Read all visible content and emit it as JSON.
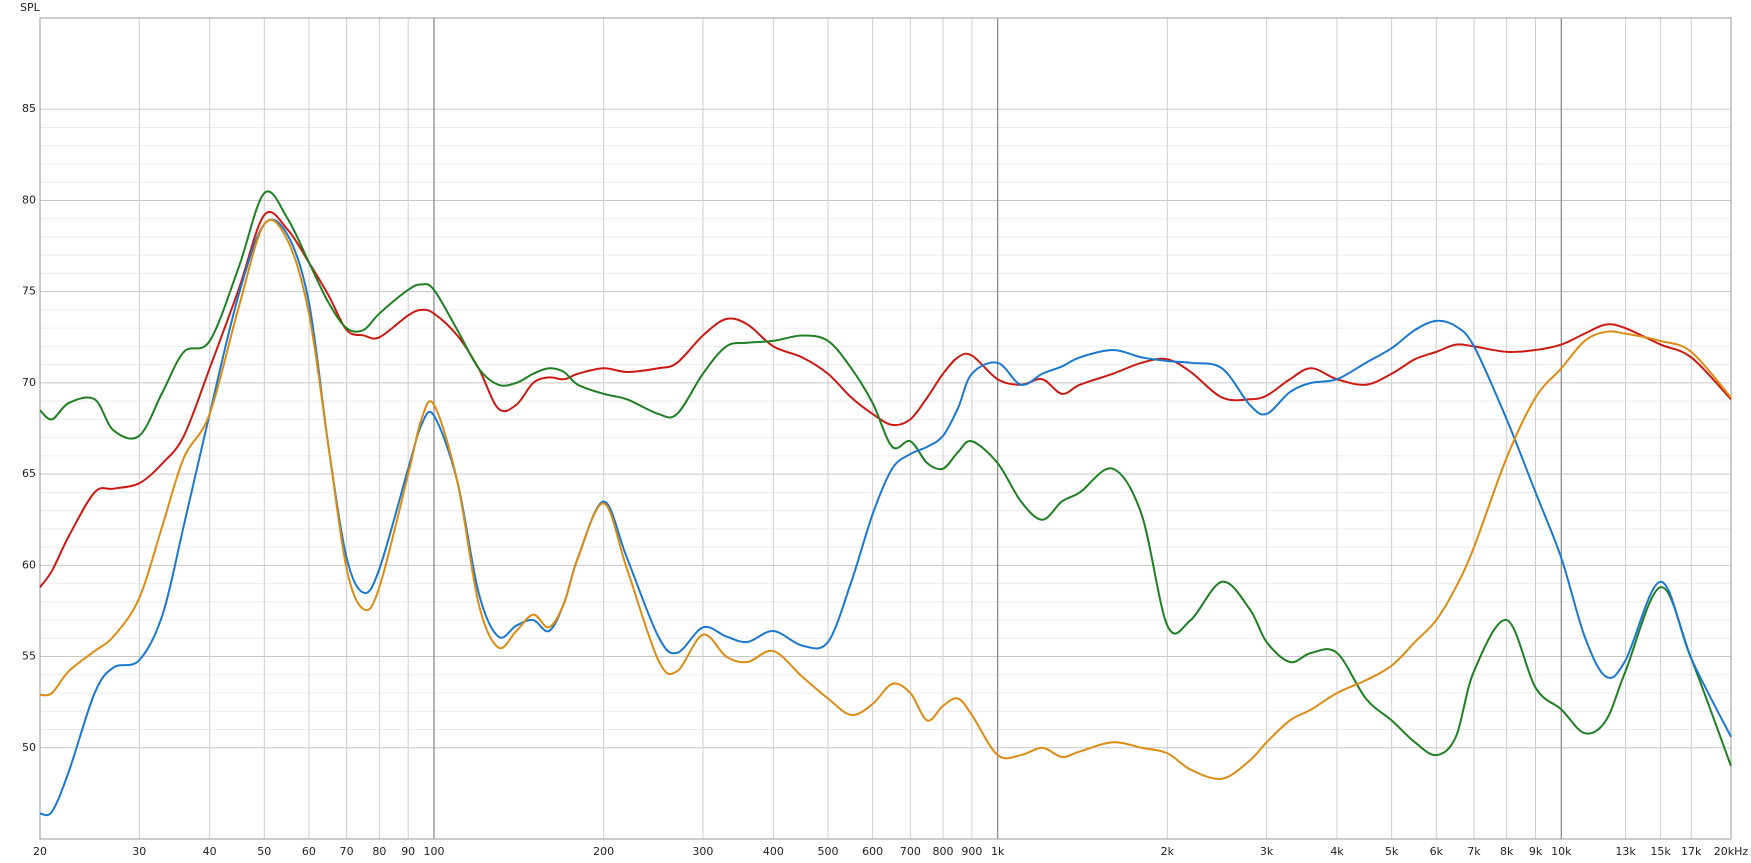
{
  "chart_data": {
    "type": "line",
    "y_label": "SPL",
    "x_scale": "log",
    "grid": true,
    "xlim": [
      20,
      20000
    ],
    "ylim": [
      45,
      90
    ],
    "yticks": [
      50,
      55,
      60,
      65,
      70,
      75,
      80,
      85
    ],
    "xticks": [
      20,
      30,
      40,
      50,
      60,
      70,
      80,
      90,
      100,
      200,
      300,
      400,
      500,
      600,
      700,
      800,
      900,
      {
        "value": 1000,
        "label": "1k"
      },
      {
        "value": 2000,
        "label": "2k"
      },
      {
        "value": 3000,
        "label": "3k"
      },
      {
        "value": 4000,
        "label": "4k"
      },
      {
        "value": 5000,
        "label": "5k"
      },
      {
        "value": 6000,
        "label": "6k"
      },
      {
        "value": 7000,
        "label": "7k"
      },
      {
        "value": 8000,
        "label": "8k"
      },
      {
        "value": 9000,
        "label": "9k"
      },
      {
        "value": 10000,
        "label": "10k"
      },
      {
        "value": 13000,
        "label": "13k"
      },
      {
        "value": 15000,
        "label": "15k"
      },
      {
        "value": 17000,
        "label": "17k"
      },
      {
        "value": 20000,
        "label": "20kHz"
      }
    ],
    "x": [
      20,
      21,
      22.5,
      25,
      27,
      30,
      33,
      36,
      40,
      45,
      50,
      55,
      60,
      65,
      70,
      75,
      80,
      90,
      95,
      100,
      110,
      120,
      130,
      140,
      150,
      160,
      170,
      180,
      200,
      220,
      250,
      270,
      300,
      330,
      360,
      400,
      450,
      500,
      550,
      600,
      650,
      700,
      750,
      800,
      850,
      900,
      1000,
      1100,
      1200,
      1300,
      1400,
      1600,
      1800,
      2000,
      2200,
      2500,
      2800,
      3000,
      3300,
      3600,
      4000,
      4500,
      5000,
      5500,
      6000,
      6500,
      7000,
      8000,
      9000,
      10000,
      11000,
      12000,
      13000,
      15000,
      17000,
      20000
    ],
    "series": [
      {
        "color": "#cc1a12",
        "values": [
          58.8,
          59.7,
          61.6,
          64.0,
          64.2,
          64.5,
          65.6,
          67.1,
          70.8,
          75.1,
          79.2,
          78.4,
          76.6,
          74.8,
          72.9,
          72.6,
          72.5,
          73.7,
          74.0,
          73.8,
          72.6,
          70.8,
          68.6,
          68.8,
          70.0,
          70.3,
          70.2,
          70.5,
          70.8,
          70.6,
          70.8,
          71.1,
          72.6,
          73.5,
          73.2,
          72.0,
          71.4,
          70.5,
          69.2,
          68.3,
          67.7,
          68.0,
          69.2,
          70.5,
          71.4,
          71.5,
          70.2,
          69.9,
          70.2,
          69.4,
          69.9,
          70.5,
          71.1,
          71.3,
          70.6,
          69.2,
          69.1,
          69.3,
          70.2,
          70.8,
          70.2,
          69.9,
          70.5,
          71.3,
          71.7,
          72.1,
          72.0,
          71.7,
          71.8,
          72.1,
          72.7,
          73.2,
          73.0,
          72.1,
          71.4,
          69.1
        ]
      },
      {
        "color": "#1f7f22",
        "values": [
          68.5,
          68.0,
          68.9,
          69.1,
          67.4,
          67.1,
          69.5,
          71.7,
          72.3,
          76.3,
          80.4,
          79.0,
          76.6,
          74.4,
          73.0,
          72.9,
          73.8,
          75.1,
          75.4,
          75.1,
          72.9,
          70.8,
          69.9,
          70.0,
          70.5,
          70.8,
          70.6,
          69.9,
          69.4,
          69.1,
          68.3,
          68.3,
          70.5,
          72.0,
          72.2,
          72.3,
          72.6,
          72.3,
          70.8,
          68.9,
          66.5,
          66.8,
          65.6,
          65.3,
          66.2,
          66.8,
          65.6,
          63.5,
          62.5,
          63.5,
          64.0,
          65.3,
          62.8,
          56.7,
          57.0,
          59.1,
          57.6,
          55.8,
          54.7,
          55.2,
          55.2,
          52.7,
          51.5,
          50.3,
          49.6,
          50.6,
          54.2,
          57.0,
          53.3,
          52.1,
          50.8,
          51.5,
          54.2,
          58.8,
          54.9,
          49.0
        ]
      },
      {
        "color": "#1a78d0",
        "values": [
          46.4,
          46.5,
          48.7,
          53.0,
          54.4,
          54.8,
          57.3,
          62.2,
          68.3,
          74.8,
          78.7,
          78.1,
          74.4,
          66.5,
          60.4,
          58.5,
          59.8,
          65.3,
          67.7,
          68.2,
          64.6,
          58.5,
          56.1,
          56.7,
          57.0,
          56.4,
          57.9,
          60.4,
          63.5,
          60.4,
          56.1,
          55.2,
          56.6,
          56.1,
          55.8,
          56.4,
          55.6,
          55.8,
          59.1,
          62.8,
          65.3,
          66.1,
          66.5,
          67.1,
          68.6,
          70.5,
          71.1,
          69.9,
          70.5,
          70.9,
          71.4,
          71.8,
          71.4,
          71.2,
          71.1,
          70.8,
          68.8,
          68.3,
          69.5,
          70.0,
          70.2,
          71.1,
          71.9,
          72.9,
          73.4,
          73.1,
          72.0,
          68.0,
          64.0,
          60.4,
          56.1,
          53.9,
          54.8,
          59.1,
          54.9,
          50.6
        ]
      },
      {
        "color": "#dc8c12",
        "values": [
          52.9,
          53.0,
          54.2,
          55.3,
          56.1,
          58.2,
          62.2,
          65.9,
          68.3,
          74.1,
          78.7,
          77.8,
          73.8,
          66.5,
          59.8,
          57.6,
          58.8,
          65.0,
          68.0,
          68.8,
          64.6,
          57.9,
          55.5,
          56.4,
          57.3,
          56.6,
          57.9,
          60.4,
          63.4,
          59.8,
          54.8,
          54.2,
          56.2,
          55.0,
          54.7,
          55.3,
          53.9,
          52.7,
          51.8,
          52.4,
          53.5,
          53.0,
          51.5,
          52.3,
          52.7,
          51.8,
          49.6,
          49.6,
          50.0,
          49.5,
          49.8,
          50.3,
          50.0,
          49.7,
          48.8,
          48.3,
          49.3,
          50.3,
          51.5,
          52.1,
          53.0,
          53.7,
          54.5,
          55.8,
          57.0,
          58.8,
          61.0,
          65.9,
          69.2,
          70.8,
          72.3,
          72.8,
          72.7,
          72.3,
          71.7,
          69.2
        ]
      }
    ]
  }
}
